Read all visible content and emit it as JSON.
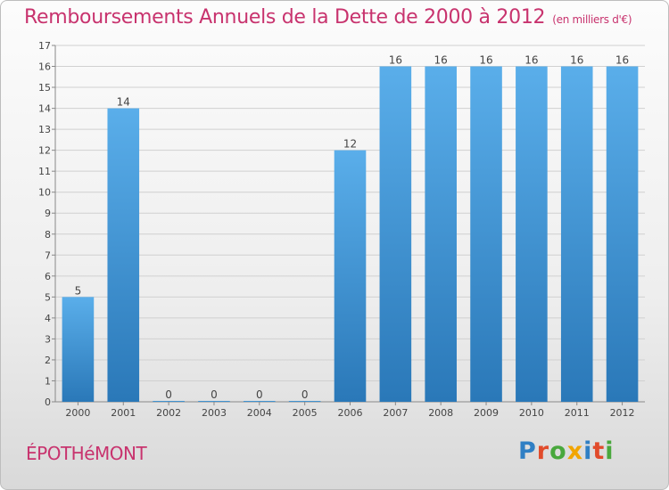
{
  "header": {
    "title": "Remboursements Annuels de la Dette de 2000 à 2012",
    "unit": "(en milliers d'€)"
  },
  "footer": {
    "commune": "ÉPOTHéMONT",
    "logo_letters": [
      "P",
      "r",
      "o",
      "x",
      "i",
      "t",
      "i"
    ],
    "logo_colors": [
      "#2f7fc4",
      "#e14b2b",
      "#49a83d",
      "#f2a500",
      "#2f7fc4",
      "#e14b2b",
      "#49a83d"
    ]
  },
  "chart_data": {
    "type": "bar",
    "title": "Remboursements Annuels de la Dette de 2000 à 2012",
    "categories": [
      "2000",
      "2001",
      "2002",
      "2003",
      "2004",
      "2005",
      "2006",
      "2007",
      "2008",
      "2009",
      "2010",
      "2011",
      "2012"
    ],
    "values": [
      5,
      14,
      0,
      0,
      0,
      0,
      12,
      16,
      16,
      16,
      16,
      16,
      16
    ],
    "value_labels": [
      "5",
      "14",
      "0",
      "0",
      "0",
      "0",
      "12",
      "16",
      "16",
      "16",
      "16",
      "16",
      "16"
    ],
    "yticks": [
      "0",
      "1",
      "2",
      "3",
      "4",
      "5",
      "6",
      "7",
      "8",
      "9",
      "10",
      "11",
      "12",
      "13",
      "14",
      "15",
      "16",
      "17"
    ],
    "ylim": [
      0,
      17
    ],
    "grid": true,
    "bar_color_top": "#5aaeea",
    "bar_color_bottom": "#2a78b8",
    "label_color": "#444444",
    "grid_color": "#d0d0d0"
  }
}
